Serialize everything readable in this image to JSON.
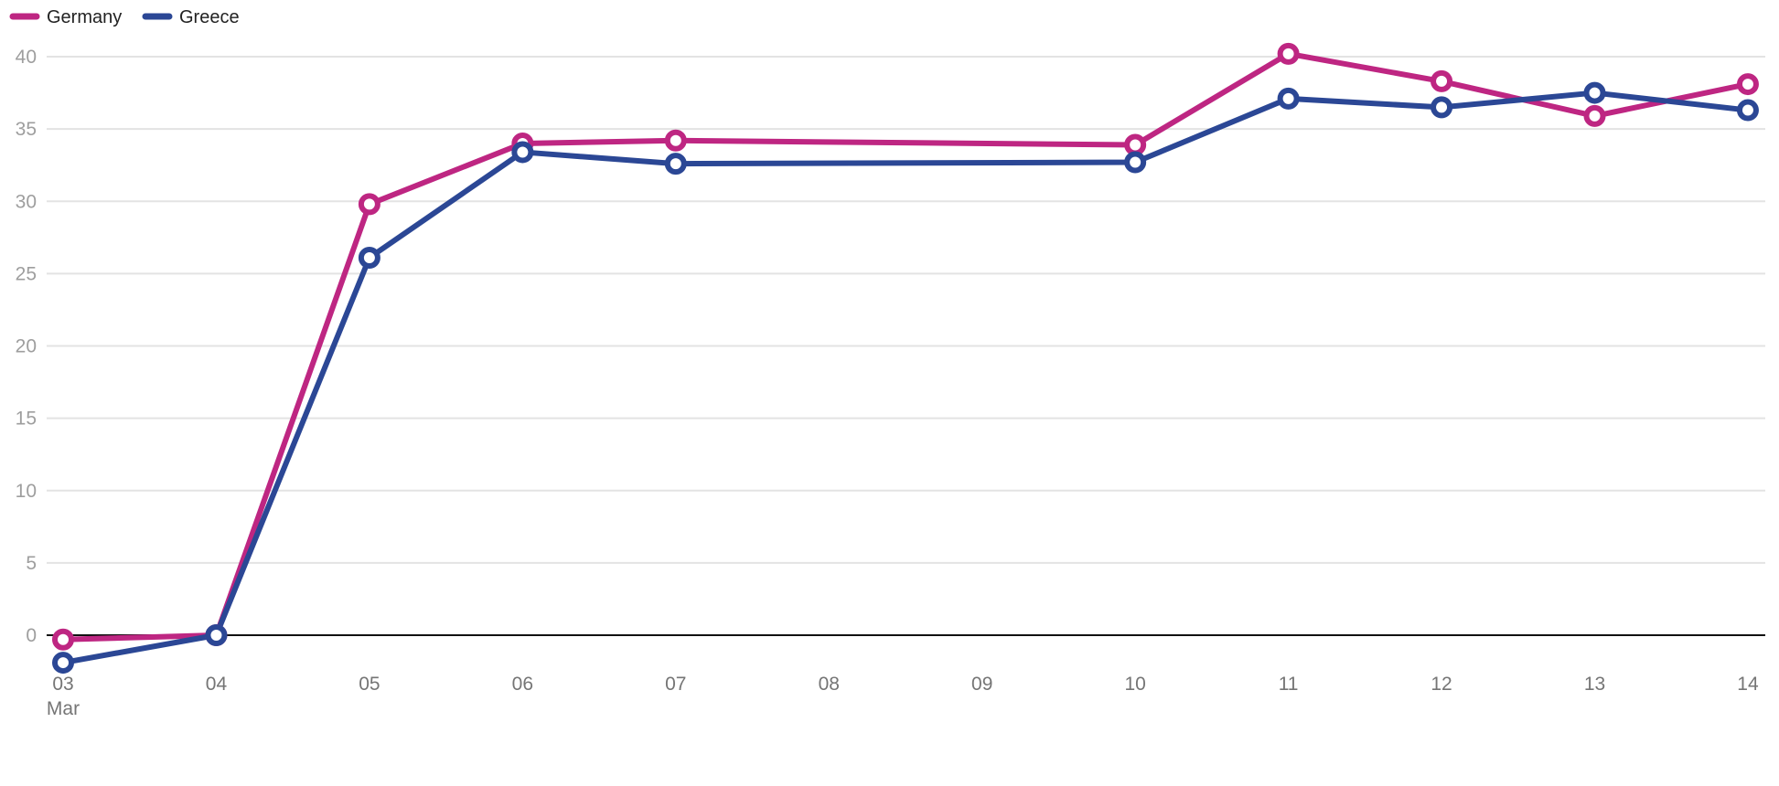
{
  "chart_data": {
    "type": "line",
    "title": "",
    "xlabel": "",
    "ylabel": "",
    "x": [
      "03",
      "04",
      "05",
      "06",
      "07",
      "08",
      "09",
      "10",
      "11",
      "12",
      "13",
      "14"
    ],
    "x_sublabel": "Mar",
    "ylim": [
      -2,
      40
    ],
    "yticks": [
      0,
      5,
      10,
      15,
      20,
      25,
      30,
      35,
      40
    ],
    "grid": true,
    "legend_position": "top-left",
    "series": [
      {
        "name": "Germany",
        "color": "#be2682",
        "values": [
          -0.3,
          0,
          29.8,
          34.0,
          34.2,
          null,
          null,
          33.9,
          40.2,
          38.3,
          35.9,
          38.1
        ]
      },
      {
        "name": "Greece",
        "color": "#2b4795",
        "values": [
          -1.9,
          0,
          26.1,
          33.4,
          32.6,
          null,
          null,
          32.7,
          37.1,
          36.5,
          37.5,
          36.3
        ]
      }
    ]
  }
}
